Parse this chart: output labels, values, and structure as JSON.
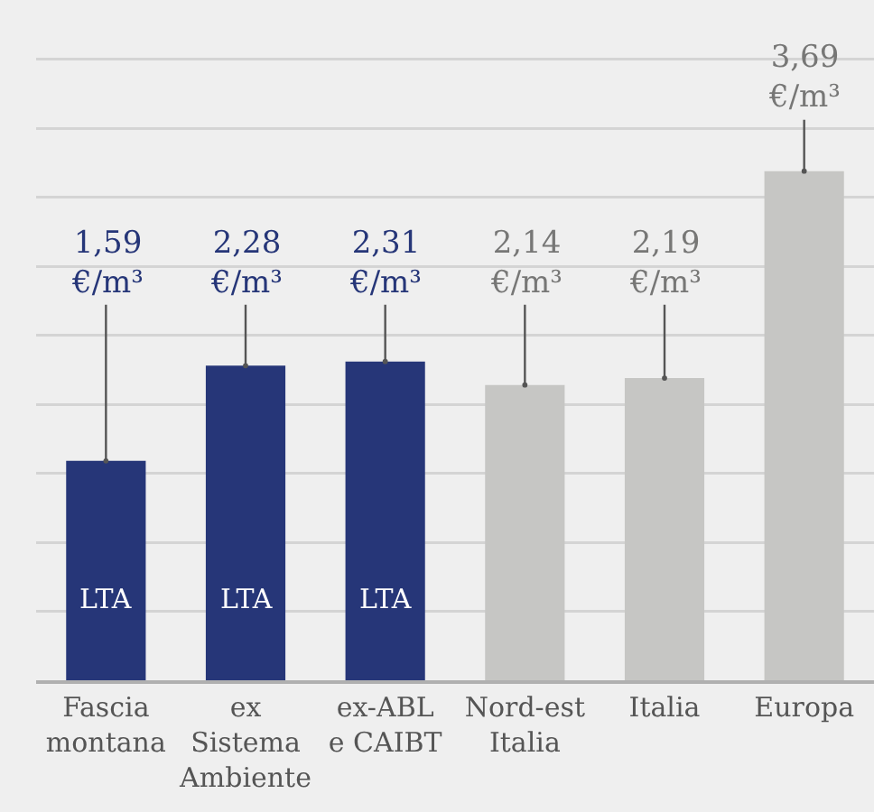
{
  "chart_data": {
    "type": "bar",
    "categories": [
      "Fascia montana",
      "ex Sistema Ambiente",
      "ex-ABL e CAIBT",
      "Nord-est Italia",
      "Italia",
      "Europa"
    ],
    "values": [
      1.59,
      2.28,
      2.31,
      2.14,
      2.19,
      3.69
    ],
    "colors": [
      "#263678",
      "#263678",
      "#263678",
      "#c6c6c4",
      "#c6c6c4",
      "#c6c6c4"
    ],
    "value_labels": [
      "1,59\n€/m³",
      "2,28\n€/m³",
      "2,31\n€/m³",
      "2,14\n€/m³",
      "2,19\n€/m³",
      "3,69\n€/m³"
    ],
    "annotations": [
      "LTA",
      "LTA",
      "LTA"
    ],
    "ylim": [
      0,
      4.93
    ],
    "yticks": [
      {
        "value": 0.5,
        "label": null
      },
      {
        "value": 1,
        "label": null
      },
      {
        "value": 1.5,
        "label": null
      },
      {
        "value": 2,
        "label": null
      },
      {
        "value": 2.5,
        "label": null
      },
      {
        "value": 3,
        "label": null
      },
      {
        "value": 3.5,
        "label": null
      },
      {
        "value": 4,
        "label": null
      },
      {
        "value": 4.5,
        "label": null
      }
    ],
    "grid": "y",
    "tick_labels": "x"
  }
}
